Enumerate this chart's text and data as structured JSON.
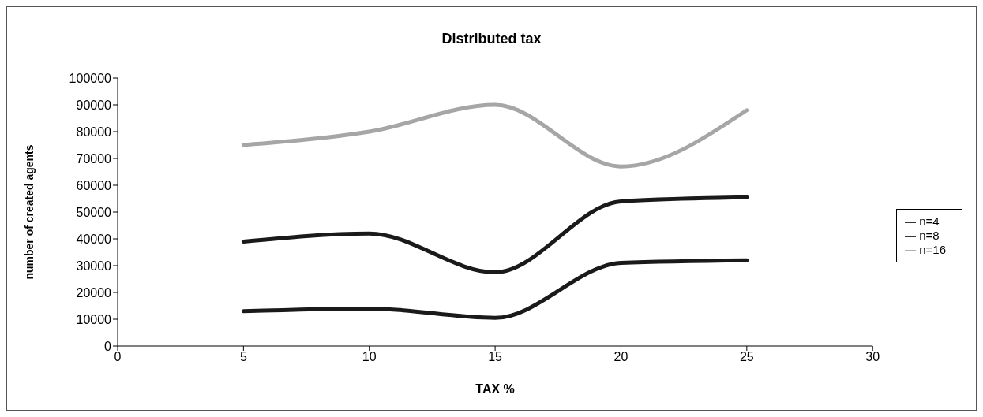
{
  "chart_data": {
    "type": "line",
    "title": "Distributed tax",
    "xlabel": "TAX %",
    "ylabel": "number of created agents",
    "x": [
      5,
      10,
      15,
      20,
      25
    ],
    "series": [
      {
        "name": "n=4",
        "color": "#1a1a1a",
        "values": [
          13000,
          14000,
          10500,
          31000,
          32000
        ]
      },
      {
        "name": "n=8",
        "color": "#1a1a1a",
        "values": [
          39000,
          42000,
          27500,
          54000,
          55500
        ]
      },
      {
        "name": "n=16",
        "color": "#a6a6a6",
        "values": [
          75000,
          80000,
          90000,
          67000,
          88000
        ]
      }
    ],
    "xlim": [
      0,
      30
    ],
    "xticks": [
      0,
      5,
      10,
      15,
      20,
      25,
      30
    ],
    "ylim": [
      0,
      100000
    ],
    "yticks": [
      0,
      10000,
      20000,
      30000,
      40000,
      50000,
      60000,
      70000,
      80000,
      90000,
      100000
    ],
    "grid": false,
    "legend": "right",
    "marker": "none",
    "line_style": "solid"
  }
}
